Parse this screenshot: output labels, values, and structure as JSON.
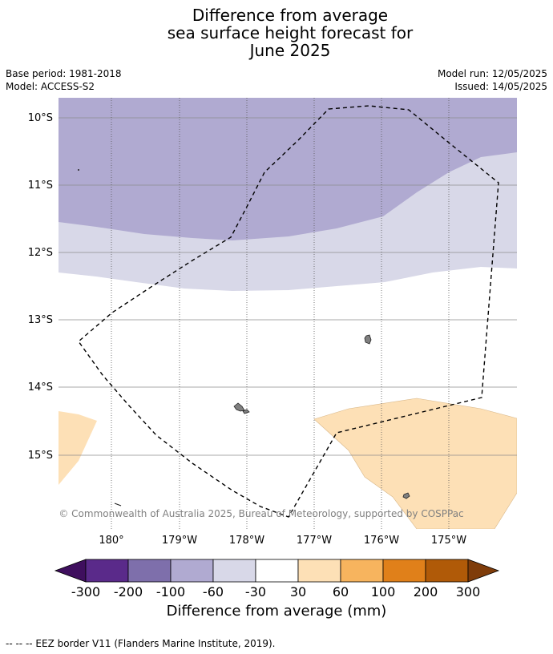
{
  "title": {
    "line1": "Difference from average",
    "line2": "sea surface height forecast for",
    "line3": "June 2025"
  },
  "meta": {
    "base_period": "Base period: 1981-2018",
    "model": "Model: ACCESS-S2",
    "model_run": "Model run: 12/05/2025",
    "issued": "Issued: 14/05/2025"
  },
  "map": {
    "lat_ticks": [
      "10°S",
      "11°S",
      "12°S",
      "13°S",
      "14°S",
      "15°S"
    ],
    "lon_ticks": [
      "180°",
      "179°W",
      "178°W",
      "177°W",
      "176°W",
      "175°W"
    ],
    "copyright": "© Commonwealth of Australia 2025, Bureau of Meteorology, supported by COSPPac",
    "colors": {
      "m200_100": "#7e6fab",
      "m100_60": "#b0aad1",
      "m60_30": "#d8d8e8",
      "m30_30": "#ffffff",
      "p30_60": "#fde0b6",
      "land": "#808080",
      "eez": "#000000"
    }
  },
  "colorbar": {
    "labels": [
      "-300",
      "-200",
      "-100",
      "-60",
      "-30",
      "30",
      "60",
      "100",
      "200",
      "300"
    ],
    "colors": [
      "#3f0f5e",
      "#5a2a8a",
      "#7e6fab",
      "#b0aad1",
      "#d8d8e8",
      "#ffffff",
      "#fde0b6",
      "#f7b45e",
      "#e0801a",
      "#b05a08",
      "#7f3c0a"
    ],
    "title": "Difference from average (mm)"
  },
  "footer": "--  --  -- EEZ border V11 (Flanders Marine Institute, 2019)."
}
